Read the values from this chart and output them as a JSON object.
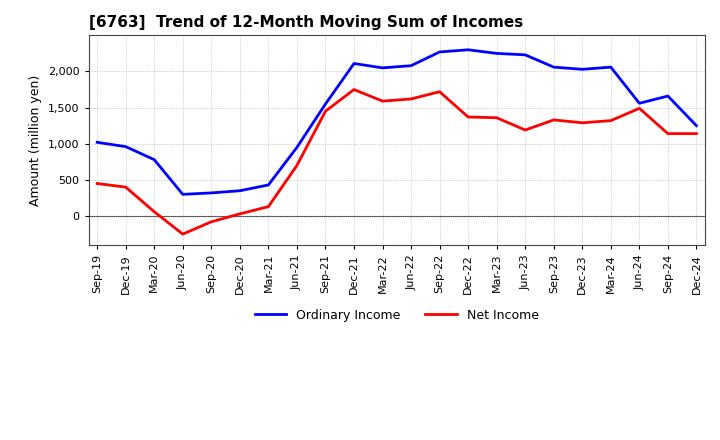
{
  "title": "[6763]  Trend of 12-Month Moving Sum of Incomes",
  "ylabel": "Amount (million yen)",
  "background_color": "#ffffff",
  "grid_color": "#aaaaaa",
  "ordinary_income_color": "#0000ff",
  "net_income_color": "#ff0000",
  "ordinary_income_label": "Ordinary Income",
  "net_income_label": "Net Income",
  "x_labels": [
    "Sep-19",
    "Dec-19",
    "Mar-20",
    "Jun-20",
    "Sep-20",
    "Dec-20",
    "Mar-21",
    "Jun-21",
    "Sep-21",
    "Dec-21",
    "Mar-22",
    "Jun-22",
    "Sep-22",
    "Dec-22",
    "Mar-23",
    "Jun-23",
    "Sep-23",
    "Dec-23",
    "Mar-24",
    "Jun-24",
    "Sep-24",
    "Dec-24"
  ],
  "ordinary_income": [
    1020,
    960,
    780,
    300,
    320,
    350,
    430,
    950,
    1550,
    2110,
    2050,
    2080,
    2270,
    2300,
    2250,
    2230,
    2060,
    2030,
    2060,
    1560,
    1660,
    1250
  ],
  "net_income": [
    450,
    400,
    60,
    -250,
    -80,
    30,
    130,
    700,
    1450,
    1750,
    1590,
    1620,
    1720,
    1370,
    1360,
    1190,
    1330,
    1290,
    1320,
    1490,
    1140,
    1140
  ],
  "ylim_min": -400,
  "ylim_max": 2500,
  "yticks": [
    0,
    500,
    1000,
    1500,
    2000
  ],
  "line_width": 2.0,
  "title_fontsize": 11,
  "label_fontsize": 9,
  "tick_fontsize": 8
}
